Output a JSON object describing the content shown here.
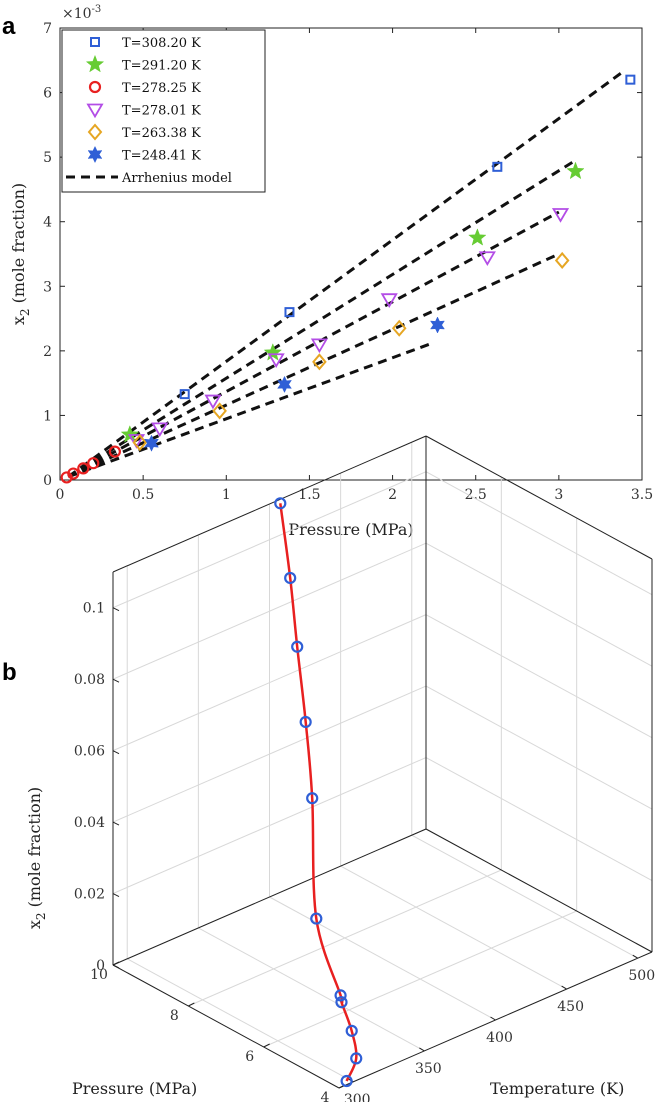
{
  "chart_data": [
    {
      "panel": "a",
      "type": "scatter",
      "xlabel": "Pressure (MPa)",
      "ylabel": "x",
      "ylabel_sub": "2",
      "ylabel_rest": "(mole fraction)",
      "exponent_label": "×10",
      "exponent_value": "-3",
      "xlim": [
        0,
        3.5
      ],
      "ylim": [
        0,
        7
      ],
      "xticks": [
        "0",
        "0.5",
        "1",
        "1.5",
        "2",
        "2.5",
        "3",
        "3.5"
      ],
      "yticks": [
        "0",
        "1",
        "2",
        "3",
        "4",
        "5",
        "6",
        "7"
      ],
      "legend_position": "top-left",
      "series": [
        {
          "name": "T=308.20 K",
          "marker": "square",
          "color": "#2f5fd6",
          "x": [
            0.75,
            1.38,
            2.63,
            3.43
          ],
          "y": [
            1.33,
            2.6,
            4.85,
            6.2
          ]
        },
        {
          "name": "T=291.20 K",
          "marker": "star5",
          "color": "#66cc33",
          "x": [
            0.42,
            1.28,
            2.51,
            3.1
          ],
          "y": [
            0.7,
            1.97,
            3.75,
            4.78
          ]
        },
        {
          "name": "T=278.25 K",
          "marker": "circle",
          "color": "#e82020",
          "x": [
            0.04,
            0.08,
            0.14,
            0.2,
            0.33
          ],
          "y": [
            0.04,
            0.1,
            0.18,
            0.26,
            0.44
          ]
        },
        {
          "name": "T=278.01 K",
          "marker": "triangle-down",
          "color": "#b34de6",
          "x": [
            0.46,
            0.6,
            0.92,
            1.3,
            1.56,
            1.98,
            2.57,
            3.01
          ],
          "y": [
            0.62,
            0.8,
            1.23,
            1.87,
            2.1,
            2.8,
            3.45,
            4.12
          ]
        },
        {
          "name": "T=263.38 K",
          "marker": "diamond",
          "color": "#e6a623",
          "x": [
            0.48,
            0.96,
            1.56,
            2.04,
            3.02
          ],
          "y": [
            0.58,
            1.07,
            1.83,
            2.35,
            3.4
          ]
        },
        {
          "name": "T=248.41 K",
          "marker": "star6",
          "color": "#2f5fd6",
          "x": [
            0.55,
            1.35,
            2.27
          ],
          "y": [
            0.57,
            1.48,
            2.4
          ]
        },
        {
          "name": "Arrhenius model",
          "marker": "dashed-line",
          "color": "#111111",
          "lines": [
            {
              "x": [
                0.05,
                3.4
              ],
              "y": [
                0.05,
                6.35
              ]
            },
            {
              "x": [
                0.05,
                3.1
              ],
              "y": [
                0.05,
                4.95
              ]
            },
            {
              "x": [
                0.05,
                3.0
              ],
              "y": [
                0.05,
                4.15
              ]
            },
            {
              "x": [
                0.05,
                3.0
              ],
              "y": [
                0.05,
                3.5
              ]
            },
            {
              "x": [
                0.05,
                2.25
              ],
              "y": [
                0.05,
                2.13
              ]
            }
          ]
        }
      ]
    },
    {
      "panel": "b",
      "type": "scatter3d",
      "xlabel": "Temperature (K)",
      "ylabel": "Pressure (MPa)",
      "zlabel": "x",
      "zlabel_sub": "2",
      "zlabel_rest": "(mole fraction)",
      "temperature_ticks": [
        "300",
        "350",
        "400",
        "450",
        "500"
      ],
      "pressure_ticks": [
        "4",
        "6",
        "8",
        "10"
      ],
      "x2_ticks": [
        "0",
        "0.02",
        "0.04",
        "0.06",
        "0.08",
        "0.1"
      ],
      "temperature_range": [
        290,
        510
      ],
      "pressure_range": [
        4,
        10
      ],
      "x2_range": [
        0,
        0.11
      ],
      "points_color": "#2f5fd6",
      "curve_color": "#e82020",
      "points": [
        {
          "T": 298,
          "P": 4.1,
          "x2": 0.0
        },
        {
          "T": 318,
          "P": 4.6,
          "x2": 0.0
        },
        {
          "T": 336,
          "P": 5.4,
          "x2": 0.0
        },
        {
          "T": 350,
          "P": 6.2,
          "x2": 0.001
        },
        {
          "T": 352,
          "P": 6.3,
          "x2": 0.002
        },
        {
          "T": 372,
          "P": 7.7,
          "x2": 0.012
        },
        {
          "T": 385,
          "P": 8.3,
          "x2": 0.04
        },
        {
          "T": 391,
          "P": 8.7,
          "x2": 0.058
        },
        {
          "T": 393,
          "P": 9.0,
          "x2": 0.077
        },
        {
          "T": 396,
          "P": 9.3,
          "x2": 0.094
        },
        {
          "T": 397,
          "P": 9.6,
          "x2": 0.113
        }
      ]
    }
  ]
}
